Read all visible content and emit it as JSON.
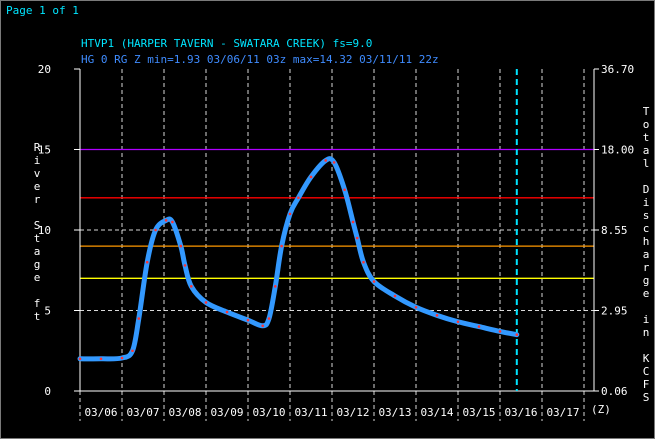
{
  "page": {
    "label": "Page 1 of 1"
  },
  "colors": {
    "background": "#000000",
    "title": "#00e5ff",
    "subtitle": "#3f8cff",
    "axes": "#ffffff",
    "grid": "#ffffff",
    "stage_line": "#3399ff",
    "stage_markers": "#ff3333",
    "forecast_line": "#00e5ff",
    "threshold_major": "#b000ff",
    "threshold_moderate": "#ff0000",
    "threshold_minor": "#ff9900",
    "threshold_action": "#ffff00"
  },
  "chart_data": {
    "type": "line",
    "title": "HTVP1 (HARPER TAVERN - SWATARA CREEK) fs=9.0",
    "subtitle": "HG 0 RG Z min=1.93 03/06/11 03z max=14.32 03/11/11 22z",
    "ylabel": "River Stage ft",
    "y2label": "Total Discharge in KCFS",
    "xlabel_suffix": "(Z)",
    "ylim": [
      0,
      20
    ],
    "xlim": [
      0,
      12
    ],
    "yticks": [
      "0",
      "5",
      "10",
      "15",
      "20"
    ],
    "y2ticks": [
      {
        "stage": 0,
        "label": "0.06"
      },
      {
        "stage": 5,
        "label": "2.95"
      },
      {
        "stage": 10,
        "label": "8.55"
      },
      {
        "stage": 15,
        "label": "18.00"
      },
      {
        "stage": 20,
        "label": "36.70"
      }
    ],
    "xticks": [
      "03/06",
      "03/07",
      "03/08",
      "03/09",
      "03/10",
      "03/11",
      "03/12",
      "03/13",
      "03/14",
      "03/15",
      "03/16",
      "03/17"
    ],
    "forecast_x": 10.4,
    "thresholds": [
      {
        "stage": 15,
        "color_key": "threshold_major"
      },
      {
        "stage": 12,
        "color_key": "threshold_moderate"
      },
      {
        "stage": 9,
        "color_key": "threshold_minor"
      },
      {
        "stage": 7,
        "color_key": "threshold_action"
      }
    ],
    "series": [
      {
        "x": [
          0,
          0.5,
          1.0,
          1.25,
          1.4,
          1.6,
          1.8,
          2.05,
          2.2,
          2.4,
          2.5,
          2.65,
          3.0,
          3.5,
          4.0,
          4.35,
          4.5,
          4.65,
          4.8,
          5.0,
          5.2,
          5.5,
          5.85,
          6.05,
          6.3,
          6.5,
          6.6,
          6.75,
          7.0,
          7.5,
          8.0,
          8.5,
          9.0,
          9.5,
          10.0,
          10.4
        ],
        "y": [
          2.0,
          2.0,
          2.05,
          2.5,
          4.5,
          8.0,
          10.0,
          10.6,
          10.5,
          9.0,
          7.8,
          6.5,
          5.5,
          4.9,
          4.4,
          4.05,
          4.5,
          6.5,
          9.0,
          11.0,
          12.0,
          13.3,
          14.32,
          14.2,
          12.5,
          10.5,
          9.5,
          8.0,
          6.8,
          5.9,
          5.2,
          4.7,
          4.3,
          4.0,
          3.7,
          3.5
        ]
      }
    ]
  }
}
